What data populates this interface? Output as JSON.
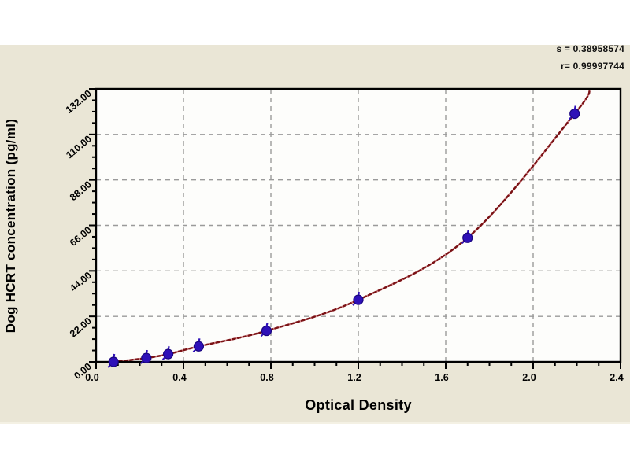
{
  "annotation": {
    "s_label": "s = 0.38958574",
    "r_label": "r= 0.99997744"
  },
  "chart_data": {
    "type": "scatter",
    "title": "",
    "xlabel": "Optical Density",
    "ylabel": "Dog HCRT concentration (pg/ml)",
    "xlim": [
      0,
      2.4
    ],
    "ylim": [
      0,
      132
    ],
    "x_ticks": [
      0,
      0.4,
      0.8,
      1.2,
      1.6,
      2.0,
      2.4
    ],
    "x_tick_labels": [
      "0.0",
      "0.4",
      "0.8",
      "1.2",
      "1.6",
      "2.0",
      "2.4"
    ],
    "x_minor_step": 0.1,
    "y_ticks": [
      0,
      22,
      44,
      66,
      88,
      110,
      132
    ],
    "y_tick_labels": [
      "0.00",
      "22.00",
      "44.00",
      "66.00",
      "88.00",
      "110.00",
      "132.00"
    ],
    "y_minor_step": 5.5,
    "grid": true,
    "legend": false,
    "series": [
      {
        "name": "standard-points",
        "points": [
          {
            "x": 0.08,
            "y": 0
          },
          {
            "x": 0.23,
            "y": 1.88
          },
          {
            "x": 0.33,
            "y": 3.75
          },
          {
            "x": 0.47,
            "y": 7.5
          },
          {
            "x": 0.78,
            "y": 15
          },
          {
            "x": 1.2,
            "y": 30
          },
          {
            "x": 1.7,
            "y": 60
          },
          {
            "x": 2.19,
            "y": 120
          }
        ]
      }
    ],
    "fit_curve_end": {
      "x": 2.26,
      "y": 132
    },
    "colors": {
      "panel_bg": "#eae6d6",
      "plot_bg": "#fdfdfb",
      "frame": "#000000",
      "grid": "#9a9a9a",
      "marker": "#2e10b8",
      "marker_edge": "#1a0580",
      "curve_dark": "#7a1215",
      "curve_light": "#d4898c",
      "text": "#000000"
    }
  }
}
